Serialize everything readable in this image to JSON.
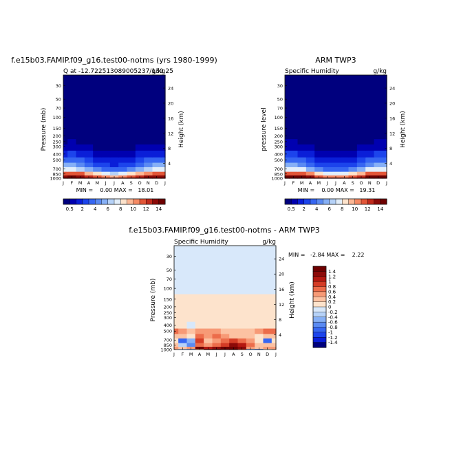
{
  "panels": {
    "p1": {
      "title": "f.e15b03.FAMIP.f09_g16.test00-notms (yrs 1980-1999)",
      "left_label": "Q at -12.722513089005237/130.25",
      "right_label": "g/kg",
      "ylabel": "Pressure (mb)",
      "y2label": "Height (km)",
      "stats": "MIN =    0.00 MAX =   18.01"
    },
    "p2": {
      "title": "ARM TWP3",
      "left_label": "Specific Humidity",
      "right_label": "g/kg",
      "ylabel": "pressure level",
      "y2label": "Height (km)",
      "stats": "MIN =    0.00 MAX =   19.31"
    },
    "p3": {
      "title": "f.e15b03.FAMIP.f09_g16.test00-notms - ARM TWP3",
      "left_label": "Specific Humidity",
      "right_label": "g/kg",
      "ylabel": "Pressure (mb)",
      "y2label": "Height (km)",
      "stats": "MIN =   -2.84 MAX =    2.22"
    }
  },
  "chart_data": [
    {
      "type": "heatmap",
      "title": "f.e15b03.FAMIP.f09_g16.test00-notms (yrs 1980-1999)",
      "subtitle": "Q at -12.722513089005237/130.25",
      "units": "g/kg",
      "xlabel": "",
      "ylabel": "Pressure (mb)",
      "y2label": "Height (km)",
      "x_ticks": [
        "J",
        "F",
        "M",
        "A",
        "M",
        "J",
        "J",
        "A",
        "S",
        "O",
        "N",
        "D",
        "J"
      ],
      "y_ticks": [
        30,
        50,
        70,
        100,
        150,
        200,
        250,
        300,
        400,
        500,
        700,
        850,
        1000
      ],
      "y2_ticks": [
        24,
        20,
        16,
        12,
        8,
        4
      ],
      "y_scale": "log",
      "ylim": [
        1000,
        20
      ],
      "min": 0.0,
      "max": 18.01,
      "levels": [
        0.5,
        1,
        2,
        3,
        4,
        5,
        6,
        7,
        8,
        9,
        10,
        11,
        12,
        13,
        14
      ],
      "colorbar_labels": [
        "0.5",
        "2",
        "4",
        "6",
        "8",
        "10",
        "12",
        "14"
      ],
      "colorbar_position": "bottom",
      "months": [
        "J",
        "F",
        "M",
        "A",
        "M",
        "J",
        "J",
        "A",
        "S",
        "O",
        "N",
        "D",
        "J"
      ],
      "pressure_levels": [
        1000,
        925,
        850,
        700,
        600,
        500,
        400,
        300,
        250,
        200,
        150,
        100
      ],
      "values": [
        [
          17.5,
          17.6,
          17.4,
          16.8,
          15.8,
          14.9,
          14.3,
          14.5,
          15.2,
          16.2,
          17.0,
          17.5,
          17.5
        ],
        [
          13.8,
          14.0,
          13.6,
          12.6,
          11.4,
          10.4,
          9.9,
          10.2,
          11.0,
          12.2,
          13.4,
          13.9,
          13.8
        ],
        [
          11.2,
          11.4,
          11.0,
          9.8,
          8.4,
          7.4,
          6.9,
          7.2,
          8.0,
          9.4,
          10.8,
          11.3,
          11.2
        ],
        [
          7.2,
          7.4,
          6.8,
          5.6,
          4.4,
          3.6,
          3.2,
          3.4,
          4.2,
          5.4,
          6.8,
          7.3,
          7.2
        ],
        [
          5.0,
          5.1,
          4.6,
          3.6,
          2.7,
          2.1,
          1.9,
          2.0,
          2.6,
          3.5,
          4.6,
          5.0,
          5.0
        ],
        [
          3.4,
          3.5,
          3.1,
          2.3,
          1.6,
          1.2,
          1.1,
          1.2,
          1.5,
          2.2,
          3.1,
          3.4,
          3.4
        ],
        [
          1.9,
          2.0,
          1.7,
          1.2,
          0.8,
          0.6,
          0.55,
          0.6,
          0.8,
          1.1,
          1.7,
          1.9,
          1.9
        ],
        [
          0.85,
          0.9,
          0.75,
          0.5,
          0.3,
          0.25,
          0.2,
          0.25,
          0.3,
          0.5,
          0.75,
          0.85,
          0.85
        ],
        [
          0.45,
          0.5,
          0.4,
          0.25,
          0.15,
          0.1,
          0.1,
          0.1,
          0.15,
          0.25,
          0.4,
          0.45,
          0.45
        ],
        [
          0.2,
          0.22,
          0.18,
          0.1,
          0.05,
          0.04,
          0.04,
          0.04,
          0.05,
          0.1,
          0.18,
          0.2,
          0.2
        ],
        [
          0.06,
          0.06,
          0.05,
          0.03,
          0.02,
          0.01,
          0.01,
          0.01,
          0.02,
          0.03,
          0.05,
          0.06,
          0.06
        ],
        [
          0.01,
          0.01,
          0.01,
          0.01,
          0.0,
          0.0,
          0.0,
          0.0,
          0.0,
          0.01,
          0.01,
          0.01,
          0.01
        ]
      ]
    },
    {
      "type": "heatmap",
      "title": "ARM TWP3",
      "subtitle": "Specific Humidity",
      "units": "g/kg",
      "xlabel": "",
      "ylabel": "pressure level",
      "y2label": "Height (km)",
      "x_ticks": [
        "J",
        "F",
        "M",
        "A",
        "M",
        "J",
        "J",
        "A",
        "S",
        "O",
        "N",
        "D",
        "J"
      ],
      "y_ticks": [
        30,
        50,
        70,
        100,
        150,
        200,
        250,
        300,
        400,
        500,
        700,
        850,
        1000
      ],
      "y2_ticks": [
        24,
        20,
        16,
        12,
        8,
        4
      ],
      "y_scale": "log",
      "ylim": [
        1000,
        20
      ],
      "min": 0.0,
      "max": 19.31,
      "levels": [
        0.5,
        1,
        2,
        3,
        4,
        5,
        6,
        7,
        8,
        9,
        10,
        11,
        12,
        13,
        14
      ],
      "colorbar_labels": [
        "0.5",
        "2",
        "4",
        "6",
        "8",
        "10",
        "12",
        "14"
      ],
      "colorbar_position": "bottom",
      "months": [
        "J",
        "F",
        "M",
        "A",
        "M",
        "J",
        "J",
        "A",
        "S",
        "O",
        "N",
        "D",
        "J"
      ],
      "pressure_levels": [
        1000,
        925,
        850,
        700,
        600,
        500,
        400,
        300,
        250,
        200,
        150,
        100
      ],
      "values": [
        [
          18.6,
          18.8,
          18.5,
          17.6,
          16.4,
          15.4,
          14.8,
          15.0,
          15.8,
          17.0,
          18.0,
          18.6,
          18.6
        ],
        [
          14.4,
          14.6,
          14.2,
          13.2,
          11.9,
          10.9,
          10.4,
          10.7,
          11.5,
          12.8,
          14.0,
          14.5,
          14.4
        ],
        [
          11.6,
          11.8,
          11.4,
          10.2,
          8.8,
          7.8,
          7.3,
          7.6,
          8.4,
          9.8,
          11.2,
          11.7,
          11.6
        ],
        [
          7.4,
          7.6,
          7.0,
          5.8,
          4.6,
          3.8,
          3.4,
          3.6,
          4.4,
          5.6,
          7.0,
          7.5,
          7.4
        ],
        [
          5.1,
          5.2,
          4.7,
          3.7,
          2.8,
          2.2,
          2.0,
          2.1,
          2.7,
          3.6,
          4.7,
          5.1,
          5.1
        ],
        [
          3.5,
          3.6,
          3.2,
          2.4,
          1.7,
          1.3,
          1.2,
          1.3,
          1.6,
          2.3,
          3.2,
          3.5,
          3.5
        ],
        [
          2.0,
          2.1,
          1.8,
          1.3,
          0.85,
          0.65,
          0.6,
          0.65,
          0.85,
          1.2,
          1.8,
          2.0,
          2.0
        ],
        [
          0.9,
          0.95,
          0.8,
          0.55,
          0.35,
          0.28,
          0.24,
          0.28,
          0.35,
          0.55,
          0.8,
          0.9,
          0.9
        ],
        [
          0.5,
          0.52,
          0.42,
          0.27,
          0.16,
          0.12,
          0.11,
          0.12,
          0.16,
          0.27,
          0.42,
          0.5,
          0.5
        ],
        [
          0.22,
          0.24,
          0.2,
          0.12,
          0.06,
          0.05,
          0.04,
          0.05,
          0.06,
          0.12,
          0.2,
          0.22,
          0.22
        ],
        [
          0.07,
          0.07,
          0.06,
          0.03,
          0.02,
          0.01,
          0.01,
          0.01,
          0.02,
          0.03,
          0.06,
          0.07,
          0.07
        ],
        [
          0.01,
          0.01,
          0.01,
          0.01,
          0.0,
          0.0,
          0.0,
          0.0,
          0.0,
          0.01,
          0.01,
          0.01,
          0.01
        ]
      ]
    },
    {
      "type": "heatmap",
      "title": "f.e15b03.FAMIP.f09_g16.test00-notms - ARM TWP3",
      "subtitle": "Specific Humidity",
      "units": "g/kg",
      "xlabel": "",
      "ylabel": "Pressure (mb)",
      "y2label": "Height (km)",
      "x_ticks": [
        "J",
        "F",
        "M",
        "A",
        "M",
        "J",
        "J",
        "A",
        "S",
        "O",
        "N",
        "D",
        "J"
      ],
      "y_ticks": [
        30,
        50,
        70,
        100,
        150,
        200,
        250,
        300,
        400,
        500,
        700,
        850,
        1000
      ],
      "y2_ticks": [
        24,
        20,
        16,
        12,
        8,
        4
      ],
      "y_scale": "log",
      "ylim": [
        1000,
        20
      ],
      "min": -2.84,
      "max": 2.22,
      "levels": [
        -1.4,
        -1.2,
        -1,
        -0.8,
        -0.6,
        -0.4,
        -0.2,
        0,
        0.2,
        0.4,
        0.6,
        0.8,
        1,
        1.2,
        1.4
      ],
      "colorbar_labels": [
        "1.4",
        "1.2",
        "1",
        "0.8",
        "0.6",
        "0.4",
        "0.2",
        "0",
        "-0.2",
        "-0.4",
        "-0.6",
        "-0.8",
        "-1",
        "-1.2",
        "-1.4"
      ],
      "colorbar_position": "right",
      "months": [
        "J",
        "F",
        "M",
        "A",
        "M",
        "J",
        "J",
        "A",
        "S",
        "O",
        "N",
        "D",
        "J"
      ],
      "pressure_levels": [
        1000,
        925,
        850,
        700,
        600,
        500,
        400,
        300,
        250,
        200,
        150,
        100
      ],
      "values": [
        [
          0.2,
          -0.4,
          -0.6,
          0.4,
          1.2,
          1.4,
          1.2,
          1.4,
          0.8,
          -0.6,
          -0.8,
          0.0,
          0.2
        ],
        [
          0.4,
          0.2,
          0.4,
          1.4,
          1.0,
          1.2,
          1.4,
          1.6,
          1.2,
          0.4,
          0.2,
          0.4,
          0.4
        ],
        [
          0.2,
          -0.4,
          -0.8,
          0.6,
          0.4,
          0.6,
          0.8,
          1.2,
          1.0,
          0.6,
          0.2,
          0.2,
          0.2
        ],
        [
          0.1,
          -1.0,
          -0.6,
          0.8,
          0.2,
          0.4,
          0.6,
          0.9,
          0.6,
          0.4,
          0.0,
          -1.0,
          0.1
        ],
        [
          0.3,
          0.2,
          0.0,
          0.6,
          0.4,
          0.6,
          0.4,
          0.3,
          0.2,
          0.2,
          0.1,
          0.2,
          0.3
        ],
        [
          0.6,
          0.4,
          0.2,
          0.4,
          0.5,
          0.4,
          0.3,
          0.2,
          0.2,
          0.3,
          0.5,
          0.7,
          0.6
        ],
        [
          0.1,
          0.1,
          -0.2,
          0.1,
          0.1,
          0.1,
          0.1,
          0.1,
          0.1,
          0.1,
          0.1,
          0.1,
          0.1
        ],
        [
          0.1,
          0.1,
          0.05,
          0.05,
          0.05,
          0.05,
          0.05,
          0.05,
          0.05,
          0.05,
          0.05,
          0.1,
          0.1
        ],
        [
          0.05,
          0.05,
          0.05,
          0.05,
          0.05,
          0.05,
          0.05,
          0.05,
          0.05,
          0.05,
          0.05,
          0.05,
          0.05
        ],
        [
          0.05,
          0.05,
          0.05,
          0.05,
          0.05,
          0.05,
          0.05,
          0.05,
          0.05,
          0.05,
          0.05,
          0.05,
          0.05
        ],
        [
          0.02,
          0.02,
          0.02,
          0.02,
          0.05,
          0.05,
          0.05,
          0.05,
          0.05,
          0.05,
          0.02,
          0.02,
          0.02
        ],
        [
          -0.1,
          -0.1,
          -0.1,
          -0.1,
          -0.1,
          -0.1,
          -0.1,
          -0.1,
          -0.1,
          -0.1,
          -0.1,
          -0.1,
          -0.1
        ]
      ]
    }
  ],
  "colors": {
    "humidity_scale": [
      "#00007e",
      "#0000b0",
      "#0a1ed8",
      "#1c44ec",
      "#3666f2",
      "#5a8af2",
      "#86b0f6",
      "#b6d2f8",
      "#e2eefa",
      "#fde3cc",
      "#fcb896",
      "#f68a64",
      "#e25638",
      "#c02a1c",
      "#8c0a08",
      "#6e0000"
    ],
    "diff_scale": [
      "#00007e",
      "#0a1ed8",
      "#1c44ec",
      "#3666f2",
      "#5a8af2",
      "#86b0f6",
      "#b6d2f8",
      "#d8e8fa",
      "#fde3cc",
      "#fcc2a2",
      "#f79a76",
      "#ec6c4a",
      "#d43c26",
      "#b41810",
      "#8c0a08",
      "#6e0000"
    ]
  }
}
